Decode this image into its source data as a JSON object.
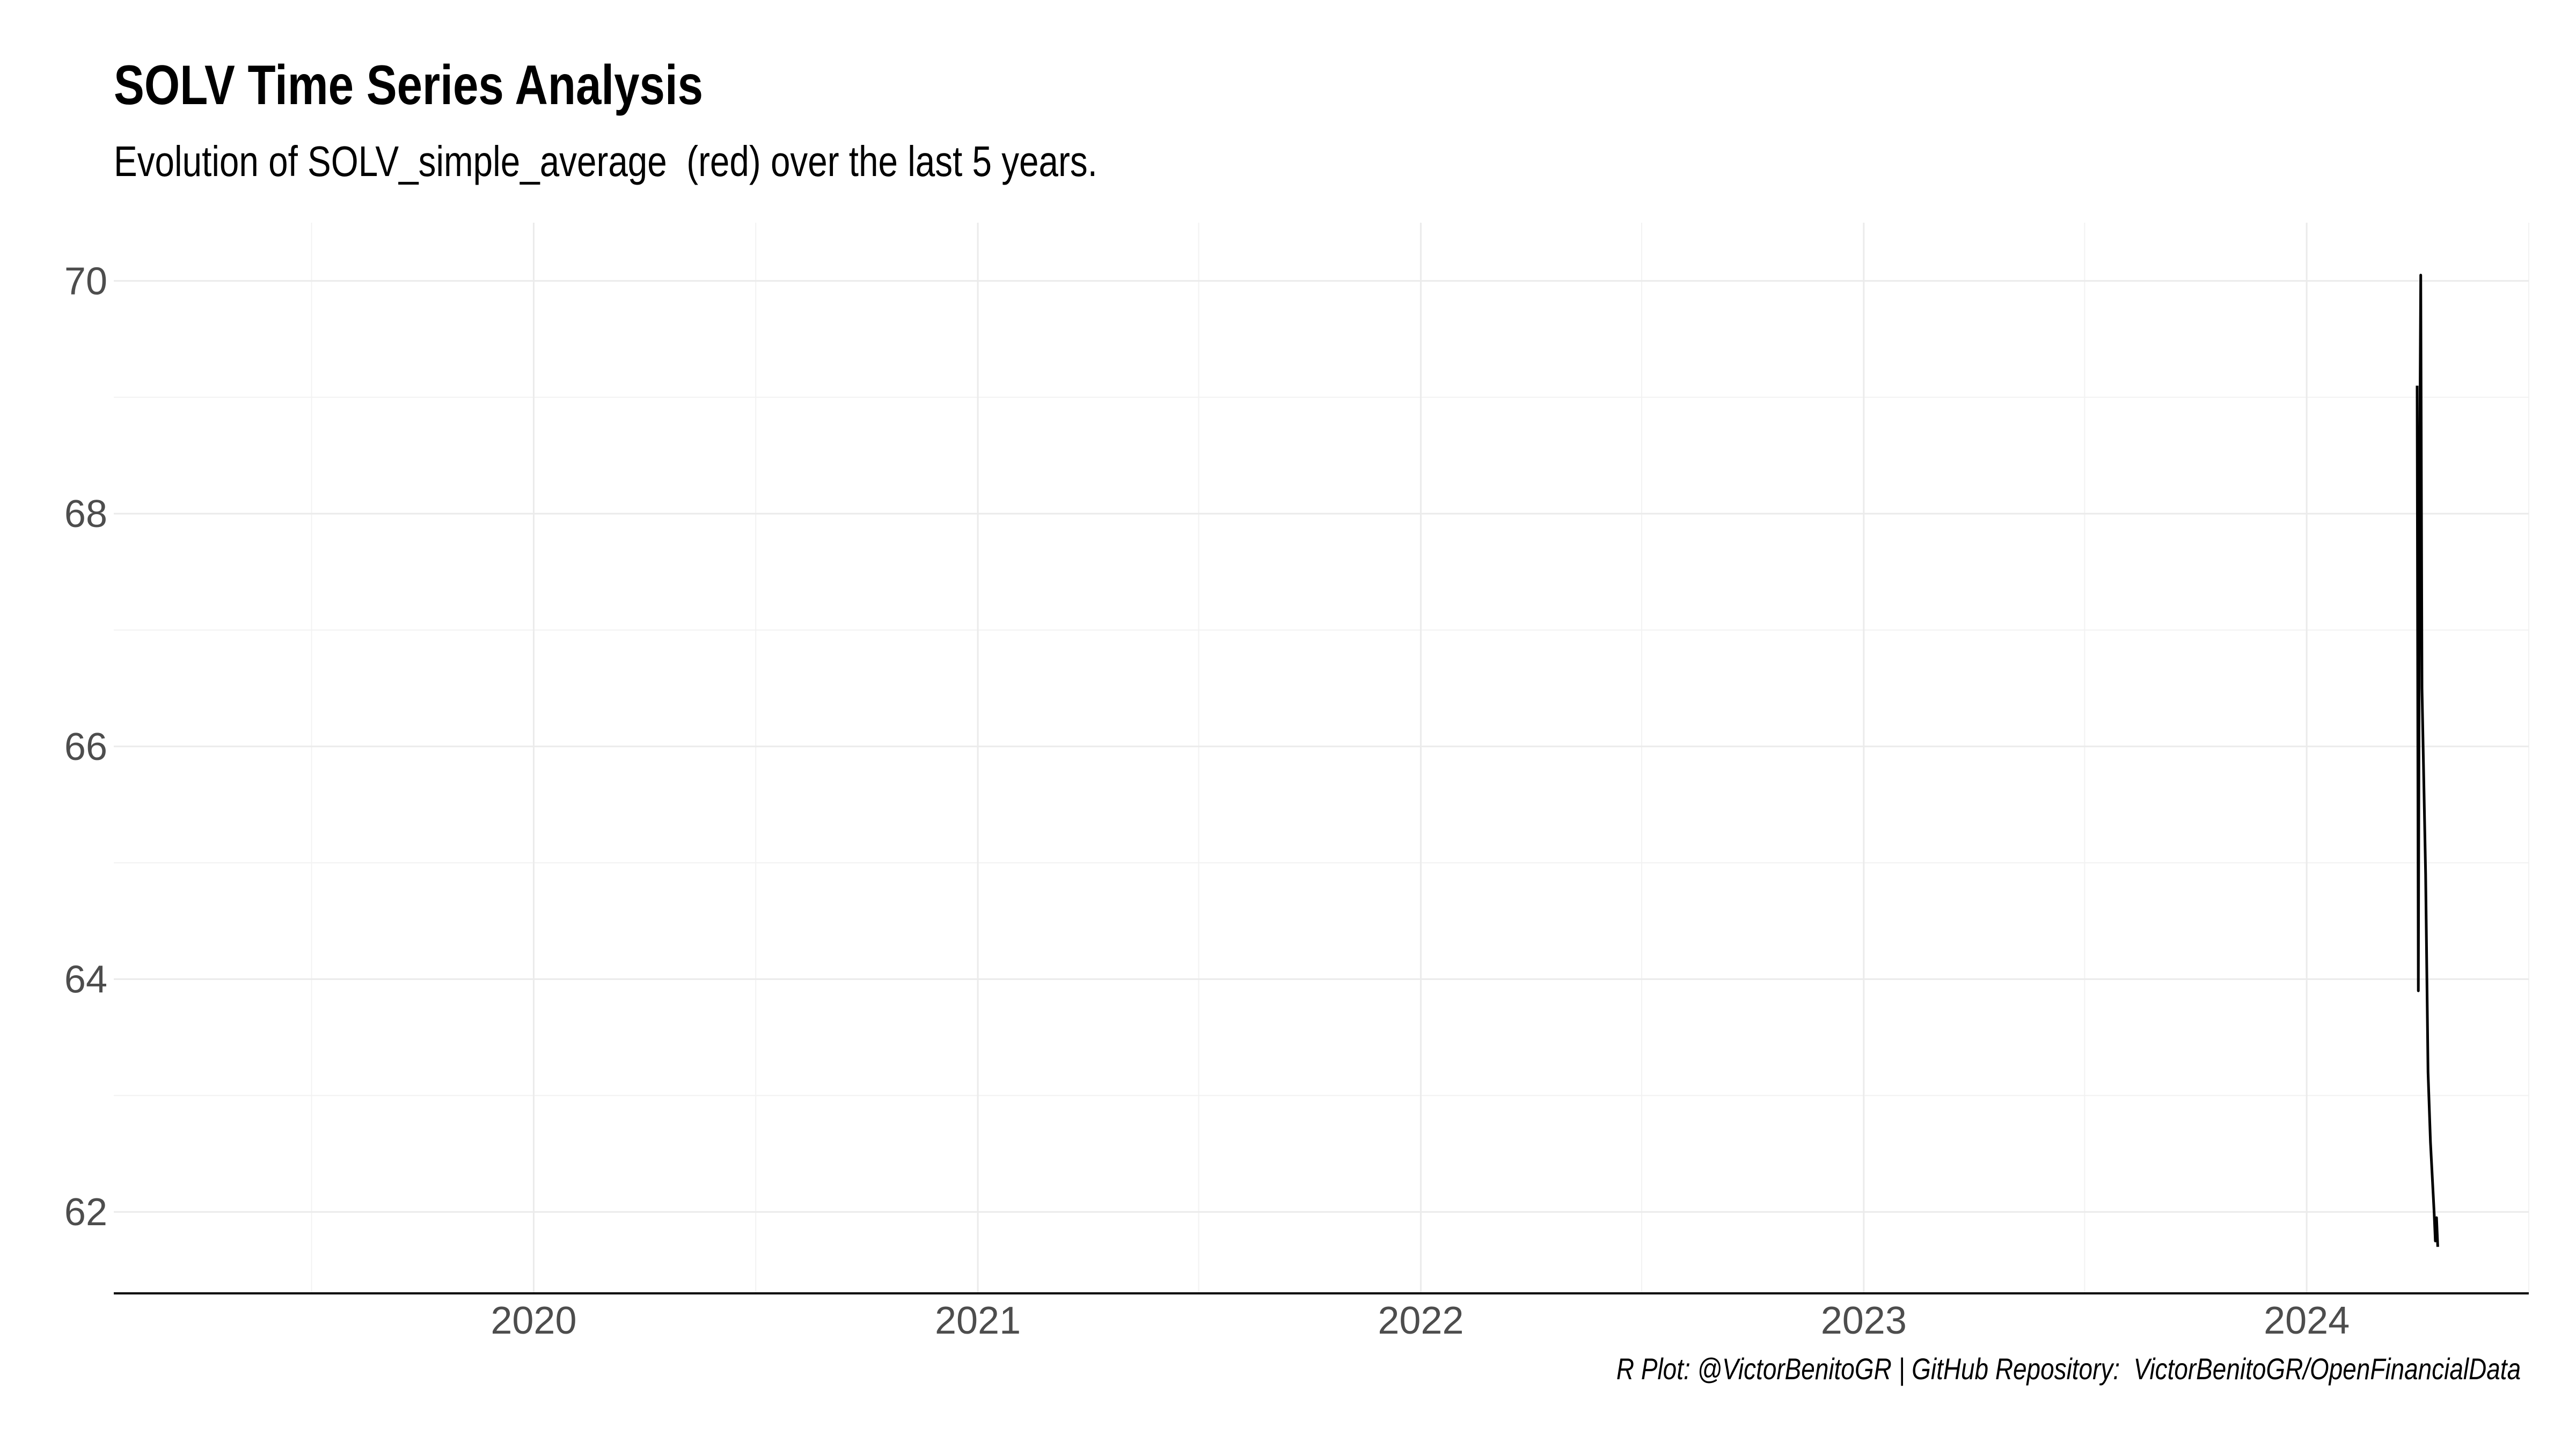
{
  "chart_data": {
    "type": "line",
    "title": "SOLV Time Series Analysis",
    "subtitle": "Evolution of SOLV_simple_average  (red) over the last 5 years.",
    "caption": "R Plot: @VictorBenitoGR | GitHub Repository:  VictorBenitoGR/OpenFinancialData",
    "xlabel": "",
    "ylabel": "",
    "x_ticks": [
      "2020",
      "2021",
      "2022",
      "2023",
      "2024"
    ],
    "y_ticks": [
      62,
      64,
      66,
      68,
      70
    ],
    "xlim": [
      "2019-01-20",
      "2024-07-02"
    ],
    "ylim": [
      61.3,
      70.5
    ],
    "grid": true,
    "series": [
      {
        "color": "#000000",
        "points": [
          [
            "2024-04-01",
            69.1
          ],
          [
            "2024-04-02",
            63.9
          ],
          [
            "2024-04-03",
            68.2
          ],
          [
            "2024-04-04",
            70.05
          ],
          [
            "2024-04-05",
            66.5
          ],
          [
            "2024-04-08",
            64.9
          ],
          [
            "2024-04-10",
            63.2
          ],
          [
            "2024-04-12",
            62.6
          ],
          [
            "2024-04-15",
            62.0
          ],
          [
            "2024-04-16",
            61.75
          ],
          [
            "2024-04-17",
            61.95
          ],
          [
            "2024-04-18",
            61.7
          ]
        ]
      }
    ]
  }
}
